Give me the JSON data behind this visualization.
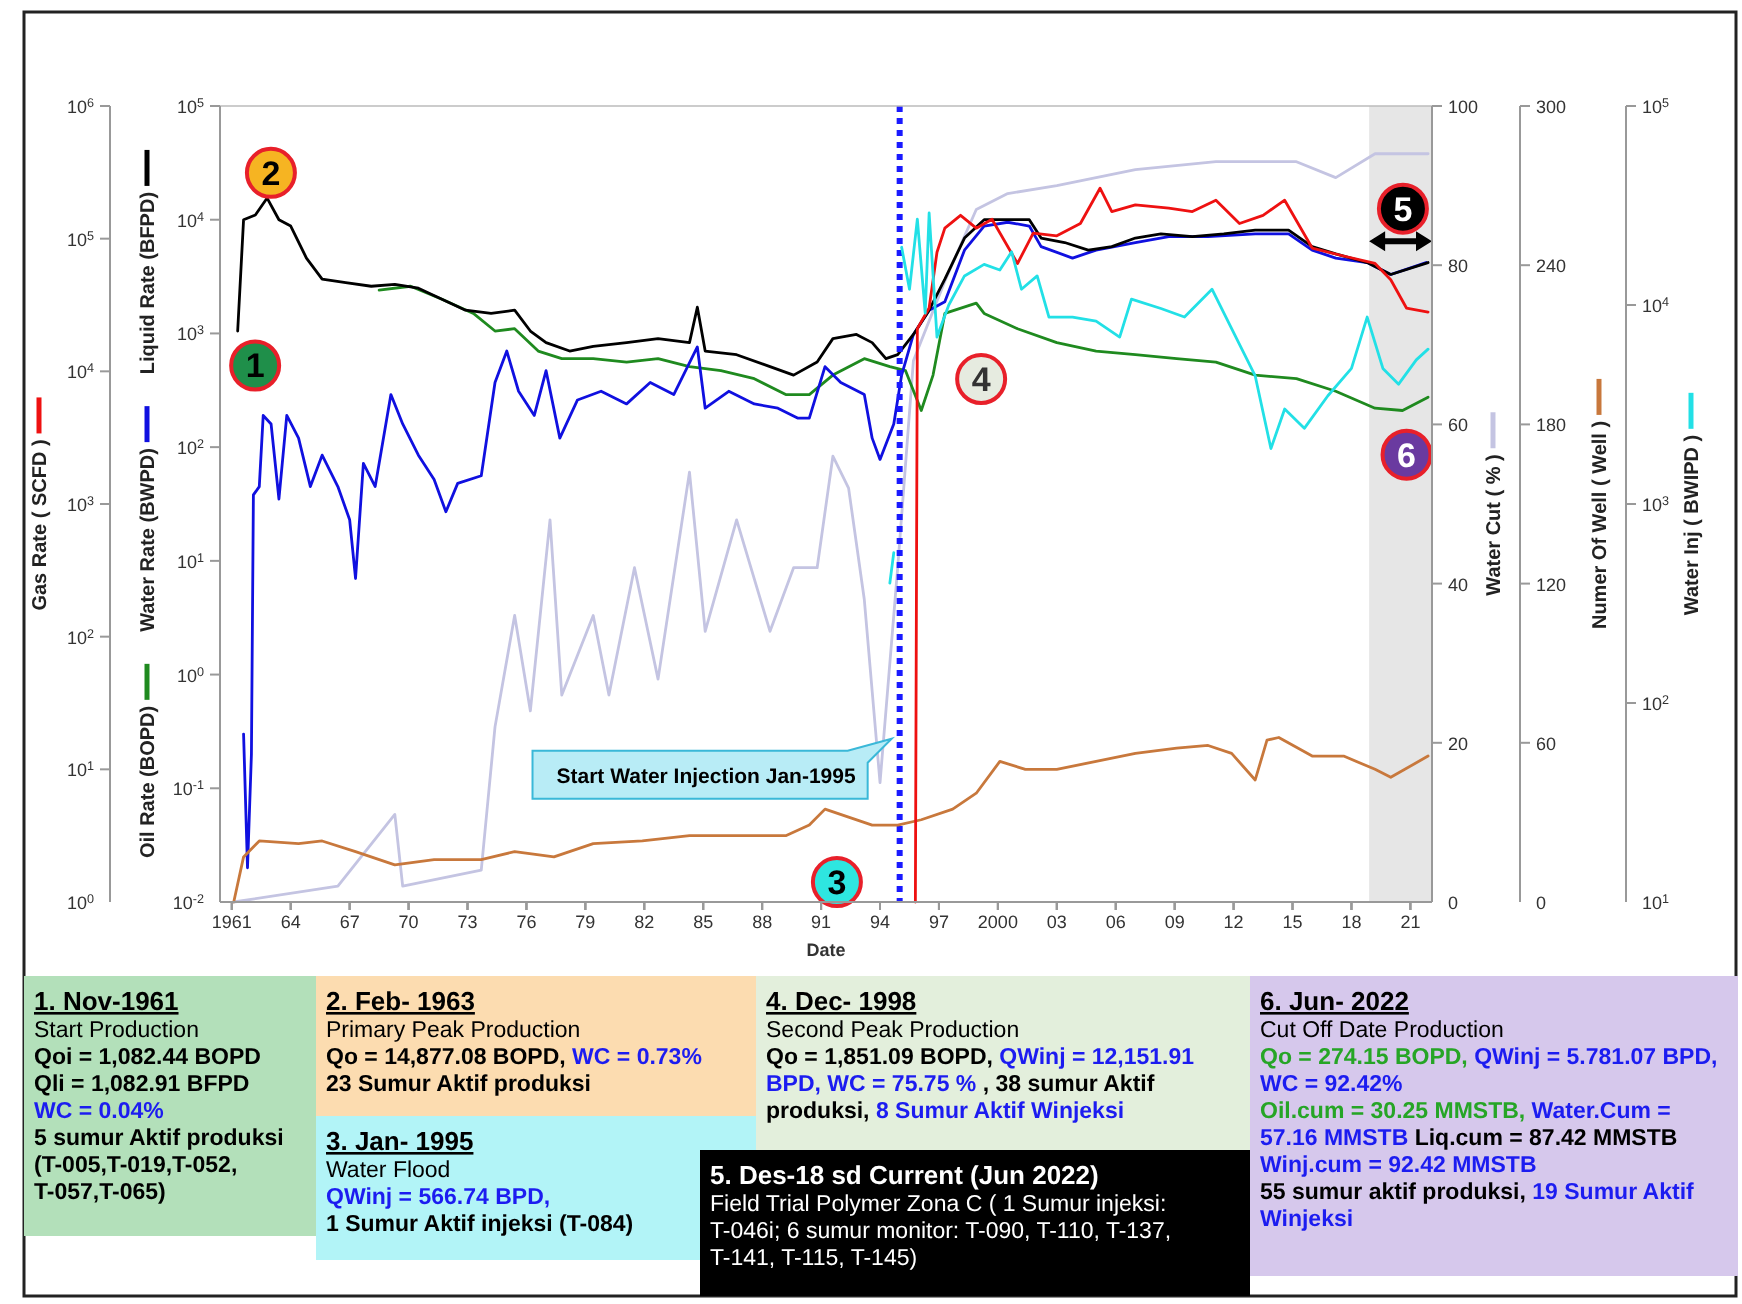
{
  "chart_data": [
    {
      "type": "line",
      "xlabel": "Date",
      "xlim": [
        1960.4,
        2022.1
      ],
      "xticks": [
        1961,
        {
          "value": 1964,
          "label": "64"
        },
        {
          "value": 1967,
          "label": "67"
        },
        {
          "value": 1970,
          "label": "70"
        },
        {
          "value": 1973,
          "label": "73"
        },
        {
          "value": 1976,
          "label": "76"
        },
        {
          "value": 1979,
          "label": "79"
        },
        {
          "value": 1982,
          "label": "82"
        },
        {
          "value": 1985,
          "label": "85"
        },
        {
          "value": 1988,
          "label": "88"
        },
        {
          "value": 1991,
          "label": "91"
        },
        {
          "value": 1994,
          "label": "94"
        },
        {
          "value": 1997,
          "label": "97"
        },
        2000,
        {
          "value": 2003,
          "label": "03"
        },
        {
          "value": 2006,
          "label": "06"
        },
        {
          "value": 2009,
          "label": "09"
        },
        {
          "value": 2012,
          "label": "12"
        },
        {
          "value": 2015,
          "label": "15"
        },
        {
          "value": 2018,
          "label": "18"
        },
        {
          "value": 2021,
          "label": "21"
        }
      ],
      "ylim": [
        0.01,
        100000
      ],
      "yticks": [
        {
          "value": 0.01,
          "label": "10$^{-2}$"
        },
        {
          "value": 0.1,
          "label": "10$^{-1}$"
        },
        {
          "value": 1,
          "label": "10$^{0}$"
        },
        {
          "value": 10,
          "label": "10$^{1}$"
        },
        {
          "value": 100,
          "label": "10$^{2}$"
        },
        {
          "value": 1000,
          "label": "10$^{3}$"
        },
        {
          "value": 10000,
          "label": "10$^{4}$"
        },
        {
          "value": 100000,
          "label": "10$^{5}$"
        }
      ],
      "y2lim": [
        0,
        100
      ],
      "y2ticks": [
        0,
        20,
        40,
        60,
        80,
        100
      ],
      "log": "y",
      "legend": "left",
      "bands": [
        {
          "axis": "x",
          "from": 2018.9,
          "to": 2022.1,
          "color": "#e6e6e6"
        }
      ],
      "ref_lines": [
        {
          "axis": "x",
          "value": 1995,
          "label": "Start Water Injection Jan-1995",
          "color": "#1a1aff",
          "line_style": "dotted"
        }
      ],
      "series": [
        {
          "name": "Water Cut ( % )",
          "color": "#c4c4e2",
          "axis": "y2",
          "x": [
            1961.1,
            1966.4,
            1969.3,
            1969.7,
            1973.7,
            1974.4,
            1975.4,
            1976.2,
            1977.2,
            1977.8,
            1979.4,
            1980.2,
            1981.5,
            1982.7,
            1984.3,
            1985.1,
            1986.7,
            1988.4,
            1989.6,
            1990.8,
            1991.6,
            1992.4,
            1993.2,
            1994.0,
            1994.9,
            1995.7,
            1997.3,
            1998.9,
            2000.5,
            2003.0,
            2007.0,
            2011.1,
            2015.2,
            2017.2,
            2019.2,
            2021.9
          ],
          "values": [
            0,
            2,
            11,
            2,
            4,
            22,
            36,
            24,
            48,
            26,
            36,
            26,
            42,
            28,
            54,
            34,
            48,
            34,
            42,
            42,
            56,
            52,
            38,
            15,
            42,
            68,
            78,
            87,
            89,
            90,
            92,
            93,
            93,
            91,
            94,
            94
          ]
        },
        {
          "name": "Oil Rate (BOPD)",
          "color": "#1f8a1f",
          "x": [
            1968.5,
            1970.1,
            1971.7,
            1973.3,
            1974.4,
            1975.4,
            1976.6,
            1977.8,
            1979.4,
            1981.1,
            1982.7,
            1984.3,
            1985.9,
            1987.6,
            1989.2,
            1990.4,
            1991.6,
            1993.2,
            1994.5,
            1995.3,
            1996.1,
            1996.7,
            1997.3,
            1998.9,
            1999.3,
            2001.0,
            2003.0,
            2005.0,
            2007.0,
            2009.1,
            2011.1,
            2013.1,
            2015.2,
            2017.2,
            2019.2,
            2020.6,
            2021.9
          ],
          "values": [
            2400,
            2600,
            2000,
            1500,
            1050,
            1100,
            700,
            600,
            600,
            560,
            600,
            510,
            470,
            400,
            290,
            290,
            430,
            600,
            510,
            470,
            210,
            430,
            1500,
            1850,
            1500,
            1100,
            830,
            700,
            650,
            600,
            560,
            430,
            400,
            310,
            220,
            210,
            275
          ]
        },
        {
          "name": "Water Rate (BWPD)",
          "color": "#1010e0",
          "x": [
            1961.6,
            1961.8,
            1962.0,
            1962.1,
            1962.4,
            1962.6,
            1963.0,
            1963.4,
            1963.8,
            1964.4,
            1965.0,
            1965.6,
            1966.4,
            1967.0,
            1967.3,
            1967.7,
            1968.3,
            1969.1,
            1969.7,
            1970.5,
            1971.3,
            1971.9,
            1972.5,
            1973.7,
            1974.4,
            1975.0,
            1975.6,
            1976.4,
            1977.0,
            1977.7,
            1978.6,
            1979.8,
            1981.1,
            1982.3,
            1983.5,
            1984.7,
            1985.1,
            1986.3,
            1987.6,
            1988.8,
            1989.8,
            1990.4,
            1991.2,
            1992.0,
            1993.2,
            1993.6,
            1994.0,
            1994.7,
            1995.1,
            1995.7,
            1996.5,
            1997.3,
            1998.3,
            1999.3,
            2000.5,
            2001.6,
            2002.2,
            2003.8,
            2005.0,
            2007.0,
            2008.7,
            2010.7,
            2013.1,
            2014.8,
            2016.0,
            2017.2,
            2018.8,
            2020.0,
            2021.8
          ],
          "values": [
            0.3,
            0.02,
            0.2,
            38,
            45,
            190,
            160,
            35,
            190,
            120,
            45,
            85,
            45,
            23,
            7,
            72,
            45,
            290,
            160,
            85,
            52,
            27,
            48,
            56,
            370,
            700,
            310,
            190,
            470,
            120,
            260,
            310,
            240,
            370,
            290,
            760,
            220,
            310,
            240,
            220,
            180,
            180,
            510,
            370,
            290,
            120,
            78,
            160,
            430,
            980,
            1600,
            1900,
            5400,
            8800,
            9500,
            8800,
            5800,
            4600,
            5400,
            6300,
            7100,
            7100,
            7500,
            7500,
            5400,
            4600,
            4200,
            3300,
            4200
          ]
        },
        {
          "name": "Liquid Rate (BFPD)",
          "color": "#000000",
          "x": [
            1961.3,
            1961.6,
            1962.2,
            1962.8,
            1963.4,
            1964.0,
            1964.8,
            1965.6,
            1966.8,
            1968.1,
            1969.3,
            1970.5,
            1971.7,
            1972.9,
            1974.2,
            1975.4,
            1976.2,
            1977.0,
            1978.2,
            1979.4,
            1981.1,
            1982.7,
            1984.3,
            1984.7,
            1985.1,
            1986.7,
            1988.4,
            1989.6,
            1990.8,
            1991.6,
            1992.8,
            1993.6,
            1994.3,
            1994.9,
            1995.7,
            1996.5,
            1997.3,
            1998.3,
            1999.3,
            2000.5,
            2001.6,
            2002.2,
            2003.4,
            2004.6,
            2005.8,
            2007.0,
            2008.3,
            2009.9,
            2011.5,
            2013.1,
            2014.8,
            2016.0,
            2017.2,
            2018.8,
            2020.0,
            2021.9
          ],
          "values": [
            1050,
            10000,
            11000,
            15500,
            10000,
            8800,
            4600,
            3000,
            2800,
            2600,
            2700,
            2500,
            2000,
            1600,
            1500,
            1600,
            1050,
            830,
            700,
            770,
            830,
            900,
            830,
            1700,
            700,
            650,
            510,
            430,
            560,
            900,
            980,
            830,
            600,
            650,
            980,
            1600,
            3000,
            6900,
            10000,
            10000,
            10000,
            6900,
            6300,
            5400,
            5800,
            6900,
            7500,
            7100,
            7500,
            8100,
            8100,
            5800,
            5000,
            4200,
            3300,
            4200
          ]
        }
      ],
      "annotations": [
        "1. Nov-1961",
        "Start Production",
        "Qoi = 1,082.44 BOPD",
        "Qli = 1,082.91 BFPD",
        "WC = 0.04%",
        "5 sumur Aktif produksi (T-005,T-019,T-052, T-057,T-065)",
        "2. Feb- 1963",
        "Primary Peak Production",
        "Qo = 14,877.08 BOPD,",
        "WC = 0.73%",
        "23 Sumur Aktif produksi",
        "3. Jan- 1995",
        "Water Flood",
        "QWinj = 566.74 BPD,",
        "1 Sumur Aktif injeksi (T-084)",
        "4. Dec- 1998",
        "Second Peak Production",
        "Qo = 1,851.09 BOPD,",
        "QWinj = 12,151.91 BPD, WC = 75.75 %",
        ", 38 sumur Aktif produksi,",
        "8 Sumur Aktif Winjeksi",
        "5. Des-18 sd Current (Jun 2022)",
        "Field Trial Polymer Zona C ( 1 Sumur injeksi: T-046i; 6 sumur monitor: T-090, T-110, T-137, T-141, T-115, T-145)",
        "6. Jun- 2022",
        "Cut Off Date Production",
        "Qo = 274.15 BOPD,",
        "QWinj = 5.781.07 BPD, WC = 92.42%",
        "Oil.cum = 30.25 MMSTB,",
        "Water.Cum = 57.16 MMSTB",
        "Liq.cum = 87.42 MMSTB",
        "Winj.cum = 92.42 MMSTB",
        "55 sumur aktif produksi,",
        "19 Sumur Aktif Winjeksi",
        "1",
        "2",
        "3",
        "4",
        "5",
        "6"
      ]
    },
    {
      "type": "line",
      "xlim": [
        1960.4,
        2022.1
      ],
      "tick_labels": "y",
      "legend": "left",
      "xticks": [
        1961,
        1964,
        1967,
        1970,
        1973,
        1976,
        1979,
        1982,
        1985,
        1988,
        1991,
        1994,
        1997,
        2000,
        2003,
        2006,
        2009,
        2012,
        2015,
        2018,
        2021
      ],
      "ylim": [
        1,
        1000000
      ],
      "yticks": [
        {
          "value": 1,
          "label": "10$^{0}$"
        },
        {
          "value": 10,
          "label": "10$^{1}$"
        },
        {
          "value": 100,
          "label": "10$^{2}$"
        },
        {
          "value": 1000,
          "label": "10$^{3}$"
        },
        {
          "value": 10000,
          "label": "10$^{4}$"
        },
        {
          "value": 100000,
          "label": "10$^{5}$"
        },
        {
          "value": 1000000,
          "label": "10$^{6}$"
        }
      ],
      "y2lim": [
        0,
        300
      ],
      "y2ticks": [
        0,
        60,
        120,
        180,
        240,
        300
      ],
      "log": "y",
      "series": [
        {
          "name": "Numer Of Well ( Well )",
          "color": "#c8783c",
          "axis": "y2",
          "x": [
            1961.1,
            1961.6,
            1962.4,
            1964.4,
            1965.6,
            1967.3,
            1969.3,
            1971.3,
            1973.7,
            1975.4,
            1977.4,
            1979.4,
            1981.9,
            1984.3,
            1986.7,
            1989.2,
            1990.4,
            1991.2,
            1992.4,
            1993.6,
            1994.9,
            1996.1,
            1997.7,
            1998.9,
            2000.1,
            2001.4,
            2003.0,
            2005.0,
            2007.0,
            2009.1,
            2010.7,
            2011.9,
            2013.1,
            2013.7,
            2014.3,
            2016.0,
            2017.6,
            2019.2,
            2020.0,
            2021.9
          ],
          "values": [
            0,
            17,
            23,
            22,
            23,
            19,
            14,
            16,
            16,
            19,
            17,
            22,
            23,
            25,
            25,
            25,
            29,
            35,
            32,
            29,
            29,
            31,
            35,
            41,
            53,
            50,
            50,
            53,
            56,
            58,
            59,
            56,
            46,
            61,
            62,
            55,
            55,
            50,
            47,
            55
          ]
        },
        {
          "name": "Gas Rate ( SCFD )",
          "color": "#ee1111",
          "x": [
            1995.8,
            1995.9,
            1996.5,
            1996.9,
            1997.3,
            1998.1,
            1998.9,
            1999.7,
            2001.0,
            2001.8,
            2003.0,
            2004.2,
            2005.2,
            2005.8,
            2007.0,
            2008.7,
            2009.9,
            2011.1,
            2012.3,
            2013.5,
            2014.6,
            2016.0,
            2017.6,
            2019.2,
            2020.0,
            2020.8,
            2021.9
          ],
          "values": [
            1,
            21000,
            30000,
            79000,
            120000,
            150000,
            120000,
            140000,
            65000,
            110000,
            105000,
            130000,
            240000,
            160000,
            180000,
            170000,
            160000,
            195000,
            130000,
            150000,
            195000,
            85000,
            74000,
            65000,
            49000,
            30000,
            28000
          ]
        }
      ]
    },
    {
      "type": "line",
      "xlim": [
        1960.4,
        2022.1
      ],
      "tick_labels": "y",
      "legend": "right",
      "xticks": [
        1961,
        1964,
        1967,
        1970,
        1973,
        1976,
        1979,
        1982,
        1985,
        1988,
        1991,
        1994,
        1997,
        2000,
        2003,
        2006,
        2009,
        2012,
        2015,
        2018,
        2021
      ],
      "ylim": [
        10,
        100000
      ],
      "yticks": [
        {
          "value": 10,
          "label": "10$^{1}$"
        },
        {
          "value": 100,
          "label": "10$^{2}$"
        },
        {
          "value": 1000,
          "label": "10$^{3}$"
        },
        {
          "value": 10000,
          "label": "10$^{4}$"
        },
        {
          "value": 100000,
          "label": "10$^{5}$"
        }
      ],
      "log": "y",
      "series": [
        {
          "name": "Water Inj ( BWIPD )",
          "color": "#22e0e6",
          "x": [
            1994.5,
            1994.7,
            1994.9,
            1995.1,
            1995.5,
            1995.9,
            1996.3,
            1996.5,
            1996.9,
            1997.5,
            1998.3,
            1999.3,
            2000.1,
            2000.7,
            2001.2,
            2002.0,
            2002.6,
            2003.8,
            2005.0,
            2006.2,
            2006.8,
            2008.3,
            2009.5,
            2010.9,
            2011.9,
            2013.1,
            2013.9,
            2014.6,
            2015.6,
            2016.8,
            2018.0,
            2018.8,
            2019.6,
            2020.4,
            2021.3,
            2021.9
          ],
          "values": [
            400,
            570,
            null,
            19500,
            12000,
            27000,
            9100,
            29000,
            6900,
            10000,
            14000,
            16000,
            15000,
            18500,
            12000,
            14000,
            8700,
            8700,
            8300,
            6900,
            10700,
            9600,
            8700,
            12000,
            7600,
            4400,
            1900,
            3000,
            2400,
            3500,
            4800,
            8700,
            4800,
            4000,
            5300,
            6000
          ]
        }
      ]
    }
  ]
}
